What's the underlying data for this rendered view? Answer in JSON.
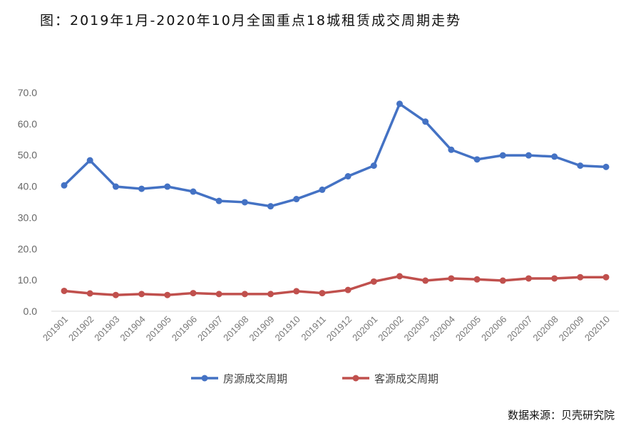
{
  "title": "图：2019年1月-2020年10月全国重点18城租赁成交周期走势",
  "source": "数据来源：贝壳研究院",
  "chart_data": {
    "type": "line",
    "title": "图：2019年1月-2020年10月全国重点18城租赁成交周期走势",
    "xlabel": "",
    "ylabel": "",
    "ylim": [
      0,
      70
    ],
    "yticks": [
      "0.0",
      "10.0",
      "20.0",
      "30.0",
      "40.0",
      "50.0",
      "60.0",
      "70.0"
    ],
    "grid": false,
    "legend": "bottom",
    "categories": [
      "201901",
      "201902",
      "201903",
      "201904",
      "201905",
      "201906",
      "201907",
      "201908",
      "201909",
      "201910",
      "201911",
      "201912",
      "202001",
      "202002",
      "202003",
      "202004",
      "202005",
      "202006",
      "202007",
      "202008",
      "202009",
      "202010"
    ],
    "series": [
      {
        "name": "房源成交周期",
        "color": "#4472C4",
        "values": [
          40.3,
          48.3,
          39.9,
          39.2,
          39.9,
          38.3,
          35.3,
          34.9,
          33.6,
          35.9,
          38.9,
          43.2,
          46.6,
          66.4,
          60.7,
          51.7,
          48.6,
          49.9,
          49.9,
          49.5,
          46.6,
          46.2
        ]
      },
      {
        "name": "客源成交周期",
        "color": "#C0504D",
        "values": [
          6.5,
          5.7,
          5.2,
          5.5,
          5.2,
          5.8,
          5.5,
          5.5,
          5.5,
          6.4,
          5.8,
          6.8,
          9.5,
          11.2,
          9.8,
          10.5,
          10.2,
          9.8,
          10.5,
          10.5,
          10.9,
          10.9
        ]
      }
    ]
  }
}
